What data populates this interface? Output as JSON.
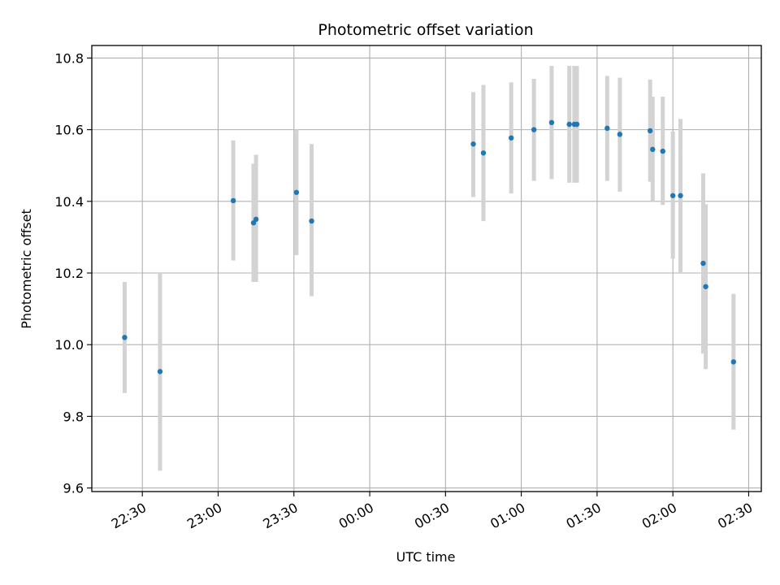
{
  "chart_data": {
    "type": "scatter",
    "title": "Photometric offset variation",
    "xlabel": "UTC time",
    "ylabel": "Photometric offset",
    "x_axis_kind": "time",
    "xlim": [
      "22:10",
      "02:35"
    ],
    "ylim": [
      9.59,
      10.835
    ],
    "x_ticks": [
      "22:30",
      "23:00",
      "23:30",
      "00:00",
      "00:30",
      "01:00",
      "01:30",
      "02:00",
      "02:30"
    ],
    "y_ticks": [
      "9.6",
      "9.8",
      "10.0",
      "10.2",
      "10.4",
      "10.6",
      "10.8"
    ],
    "y_tick_values": [
      9.6,
      9.8,
      10.0,
      10.2,
      10.4,
      10.6,
      10.8
    ],
    "grid": true,
    "colors": {
      "points": "#1f77b4",
      "error_bars": "#d3d3d3",
      "grid": "#b0b0b0"
    },
    "series": [
      {
        "points": [
          {
            "x": "22:23",
            "y": 10.02,
            "ymin": 9.865,
            "ymax": 10.175
          },
          {
            "x": "22:37",
            "y": 9.925,
            "ymin": 9.648,
            "ymax": 10.2
          },
          {
            "x": "23:06",
            "y": 10.402,
            "ymin": 10.235,
            "ymax": 10.57
          },
          {
            "x": "23:14",
            "y": 10.34,
            "ymin": 10.175,
            "ymax": 10.505
          },
          {
            "x": "23:15",
            "y": 10.35,
            "ymin": 10.175,
            "ymax": 10.53
          },
          {
            "x": "23:31",
            "y": 10.425,
            "ymin": 10.25,
            "ymax": 10.6
          },
          {
            "x": "23:37",
            "y": 10.345,
            "ymin": 10.135,
            "ymax": 10.56
          },
          {
            "x": "00:41",
            "y": 10.56,
            "ymin": 10.412,
            "ymax": 10.705
          },
          {
            "x": "00:45",
            "y": 10.535,
            "ymin": 10.345,
            "ymax": 10.725
          },
          {
            "x": "00:56",
            "y": 10.577,
            "ymin": 10.422,
            "ymax": 10.732
          },
          {
            "x": "01:05",
            "y": 10.6,
            "ymin": 10.457,
            "ymax": 10.742
          },
          {
            "x": "01:12",
            "y": 10.62,
            "ymin": 10.462,
            "ymax": 10.778
          },
          {
            "x": "01:19",
            "y": 10.615,
            "ymin": 10.452,
            "ymax": 10.778
          },
          {
            "x": "01:21",
            "y": 10.615,
            "ymin": 10.452,
            "ymax": 10.778
          },
          {
            "x": "01:22",
            "y": 10.615,
            "ymin": 10.452,
            "ymax": 10.778
          },
          {
            "x": "01:34",
            "y": 10.604,
            "ymin": 10.457,
            "ymax": 10.75
          },
          {
            "x": "01:39",
            "y": 10.587,
            "ymin": 10.427,
            "ymax": 10.745
          },
          {
            "x": "01:51",
            "y": 10.597,
            "ymin": 10.455,
            "ymax": 10.74
          },
          {
            "x": "01:52",
            "y": 10.545,
            "ymin": 10.4,
            "ymax": 10.692
          },
          {
            "x": "01:56",
            "y": 10.54,
            "ymin": 10.39,
            "ymax": 10.692
          },
          {
            "x": "02:00",
            "y": 10.416,
            "ymin": 10.24,
            "ymax": 10.595
          },
          {
            "x": "02:03",
            "y": 10.416,
            "ymin": 10.2,
            "ymax": 10.63
          },
          {
            "x": "02:12",
            "y": 10.227,
            "ymin": 9.975,
            "ymax": 10.478
          },
          {
            "x": "02:13",
            "y": 10.162,
            "ymin": 9.932,
            "ymax": 10.392
          },
          {
            "x": "02:24",
            "y": 9.952,
            "ymin": 9.763,
            "ymax": 10.142
          }
        ]
      }
    ]
  }
}
